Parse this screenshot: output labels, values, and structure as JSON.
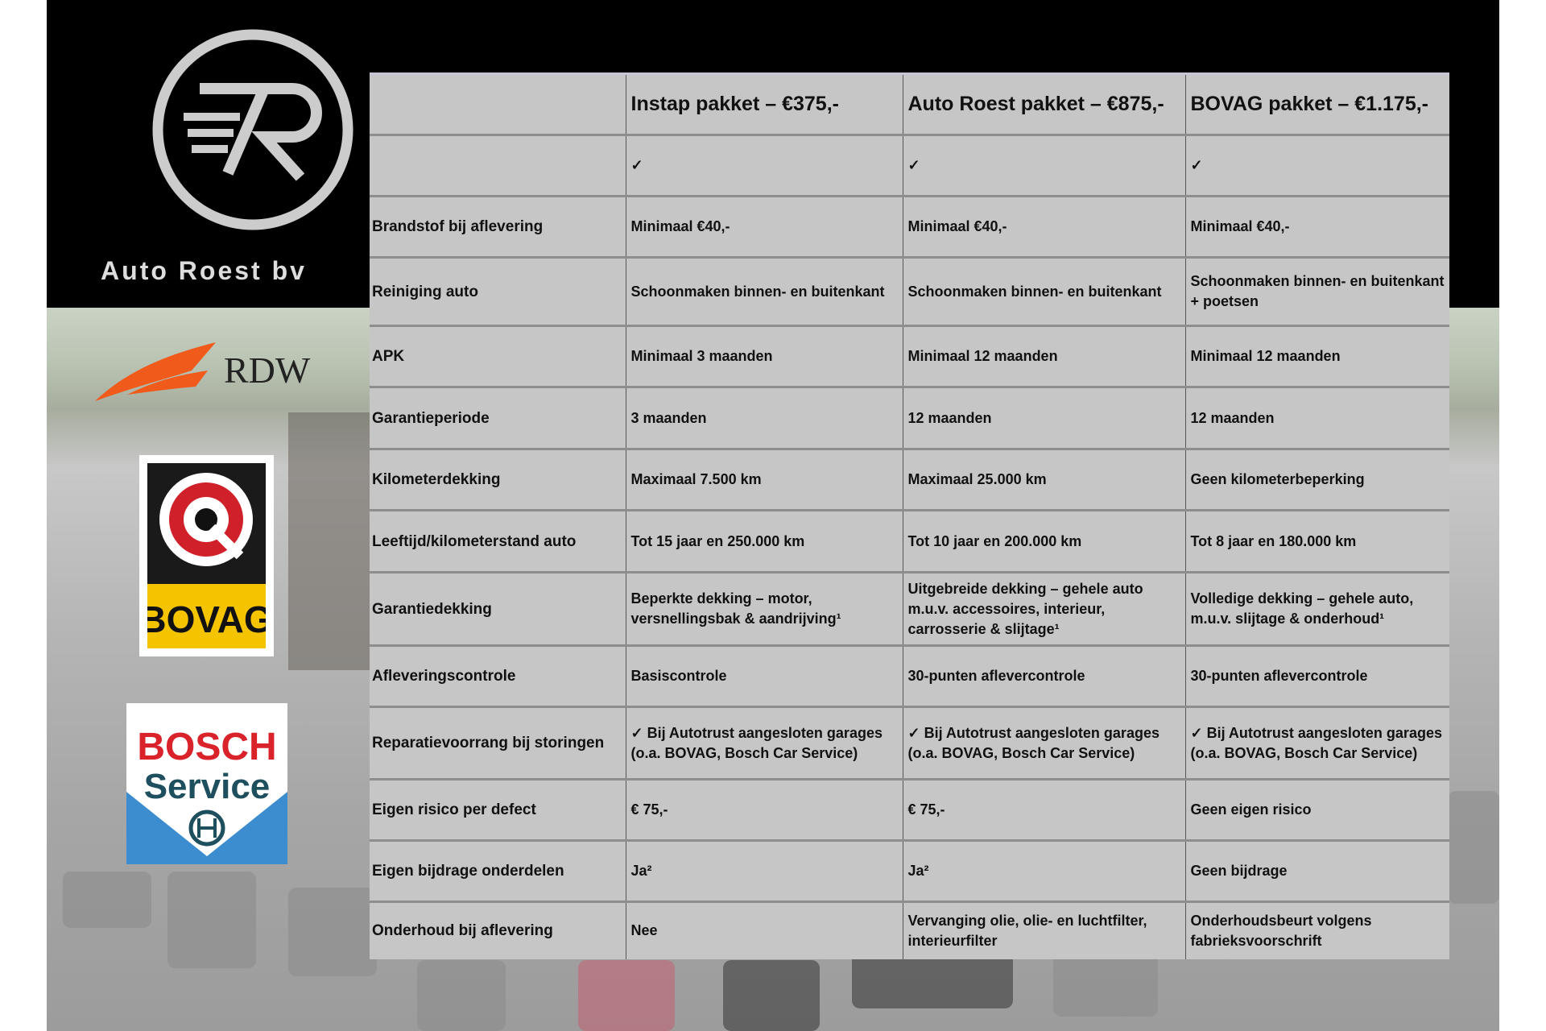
{
  "brand": {
    "name": "Auto Roest bv"
  },
  "logos": {
    "rdw": "RDW",
    "bovag": "BOVAG",
    "bosch_line1": "BOSCH",
    "bosch_line2": "Service"
  },
  "table": {
    "headers": [
      "",
      "Instap pakket – €375,-",
      "Auto Roest pakket – €875,-",
      "BOVAG pakket – €1.175,-"
    ],
    "rows": [
      [
        "",
        "✓",
        "✓",
        "✓"
      ],
      [
        "Brandstof bij aflevering",
        "Minimaal €40,-",
        "Minimaal €40,-",
        "Minimaal €40,-"
      ],
      [
        "Reiniging auto",
        "Schoonmaken binnen- en buitenkant",
        "Schoonmaken binnen- en buitenkant",
        "Schoonmaken binnen- en buitenkant + poetsen"
      ],
      [
        "APK",
        "Minimaal 3 maanden",
        "Minimaal 12 maanden",
        "Minimaal 12 maanden"
      ],
      [
        "Garantieperiode",
        "3 maanden",
        "12 maanden",
        "12 maanden"
      ],
      [
        "Kilometerdekking",
        "Maximaal 7.500 km",
        "Maximaal 25.000 km",
        "Geen kilometerbeperking"
      ],
      [
        "Leeftijd/kilometerstand auto",
        "Tot 15 jaar en 250.000 km",
        "Tot 10 jaar en 200.000 km",
        "Tot 8 jaar en 180.000 km"
      ],
      [
        "Garantiedekking",
        "Beperkte dekking – motor, versnellingsbak & aandrijving¹",
        "Uitgebreide dekking – gehele auto m.u.v. accessoires, interieur, carrosserie & slijtage¹",
        "Volledige dekking – gehele auto, m.u.v. slijtage & onderhoud¹"
      ],
      [
        "Afleveringscontrole",
        "Basiscontrole",
        "30-punten aflevercontrole",
        "30-punten aflevercontrole"
      ],
      [
        "Reparatievoorrang bij storingen",
        "✓ Bij Autotrust aangesloten garages (o.a. BOVAG, Bosch Car Service)",
        "✓ Bij Autotrust aangesloten garages (o.a. BOVAG, Bosch Car Service)",
        "✓ Bij Autotrust aangesloten garages (o.a. BOVAG, Bosch Car Service)"
      ],
      [
        "Eigen risico per defect",
        "€ 75,-",
        "€ 75,-",
        "Geen eigen risico"
      ],
      [
        "Eigen bijdrage onderdelen",
        "Ja²",
        "Ja²",
        "Geen bijdrage"
      ],
      [
        "Onderhoud bij aflevering",
        "Nee",
        "Vervanging olie, olie- en luchtfilter, interieurfilter",
        "Onderhoudsbeurt volgens fabrieksvoorschrift"
      ]
    ]
  }
}
